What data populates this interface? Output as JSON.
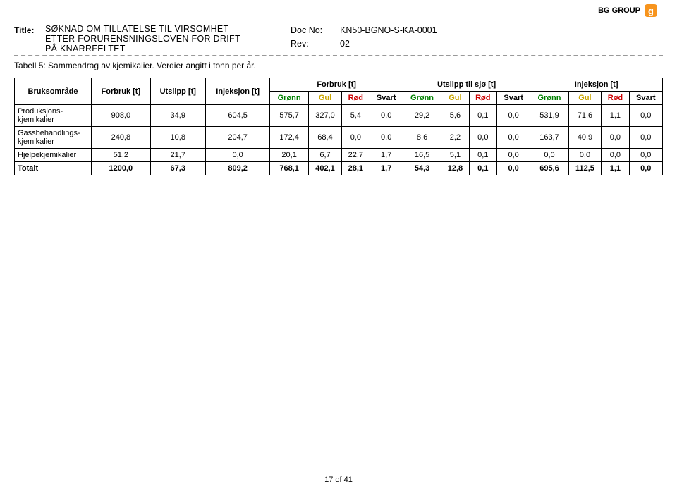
{
  "brand": {
    "name": "BG GROUP",
    "glyph": "g"
  },
  "header": {
    "title_label": "Title:",
    "title_line1": "SØKNAD OM TILLATELSE TIL VIRSOMHET",
    "title_line2": "ETTER FORURENSNINGSLOVEN FOR DRIFT",
    "title_line3": "PÅ KNARRFELTET",
    "docno_label": "Doc No:",
    "docno_value": "KN50-BGNO-S-KA-0001",
    "rev_label": "Rev:",
    "rev_value": "02"
  },
  "caption": "Tabell 5: Sammendrag av kjemikalier. Verdier angitt i tonn per år.",
  "table": {
    "head": {
      "bruks": "Bruksområde",
      "forbruk_t": "Forbruk [t]",
      "utslipp_t": "Utslipp [t]",
      "injeksjon_t": "Injeksjon [t]",
      "group_forbruk": "Forbruk [t]",
      "group_utslipp": "Utslipp til sjø [t]",
      "group_injeksjon": "Injeksjon [t]",
      "sub": {
        "gronn": "Grønn",
        "gul": "Gul",
        "rod": "Rød",
        "svart": "Svart"
      }
    },
    "rows": [
      {
        "label": "Produksjons-kjemikalier",
        "forbruk": "908,0",
        "utslipp": "34,9",
        "injeksjon": "604,5",
        "f": [
          "575,7",
          "327,0",
          "5,4",
          "0,0"
        ],
        "u": [
          "29,2",
          "5,6",
          "0,1",
          "0,0"
        ],
        "i": [
          "531,9",
          "71,6",
          "1,1",
          "0,0"
        ]
      },
      {
        "label": "Gassbehandlings-kjemikalier",
        "forbruk": "240,8",
        "utslipp": "10,8",
        "injeksjon": "204,7",
        "f": [
          "172,4",
          "68,4",
          "0,0",
          "0,0"
        ],
        "u": [
          "8,6",
          "2,2",
          "0,0",
          "0,0"
        ],
        "i": [
          "163,7",
          "40,9",
          "0,0",
          "0,0"
        ]
      },
      {
        "label": "Hjelpekjemikalier",
        "forbruk": "51,2",
        "utslipp": "21,7",
        "injeksjon": "0,0",
        "f": [
          "20,1",
          "6,7",
          "22,7",
          "1,7"
        ],
        "u": [
          "16,5",
          "5,1",
          "0,1",
          "0,0"
        ],
        "i": [
          "0,0",
          "0,0",
          "0,0",
          "0,0"
        ]
      },
      {
        "label": "Totalt",
        "forbruk": "1200,0",
        "utslipp": "67,3",
        "injeksjon": "809,2",
        "f": [
          "768,1",
          "402,1",
          "28,1",
          "1,7"
        ],
        "u": [
          "54,3",
          "12,8",
          "0,1",
          "0,0"
        ],
        "i": [
          "695,6",
          "112,5",
          "1,1",
          "0,0"
        ]
      }
    ]
  },
  "footer": "17 of 41"
}
